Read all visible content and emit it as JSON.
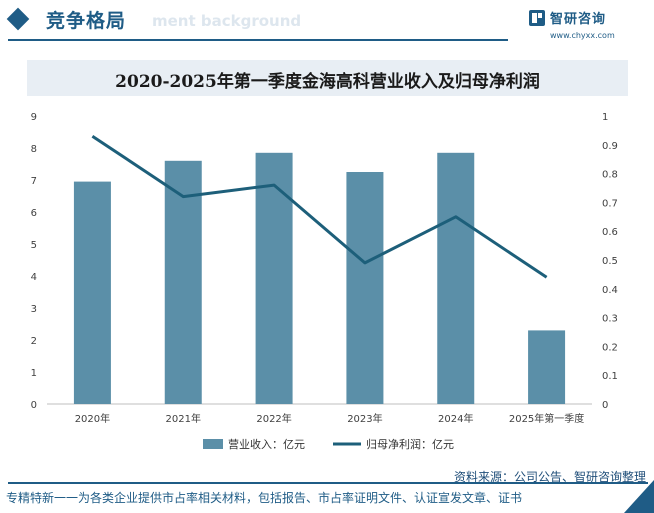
{
  "header": {
    "section_title": "竞争格局",
    "watermark_text": "ment background",
    "brand_name": "智研咨询",
    "brand_url": "www.chyxx.com"
  },
  "chart_data": {
    "type": "bar",
    "title": "2020-2025年第一季度金海高科营业收入及归母净利润",
    "categories": [
      "2020年",
      "2021年",
      "2022年",
      "2023年",
      "2024年",
      "2025年第一季度"
    ],
    "series": [
      {
        "name": "营业收入：亿元",
        "type": "bar",
        "axis": "left",
        "color": "#5b8fa8",
        "values": [
          6.95,
          7.6,
          7.85,
          7.25,
          7.85,
          2.3
        ]
      },
      {
        "name": "归母净利润：亿元",
        "type": "line",
        "axis": "right",
        "color": "#1d5f7a",
        "values": [
          0.93,
          0.72,
          0.76,
          0.49,
          0.65,
          0.44
        ]
      }
    ],
    "ylim_left": [
      0,
      9
    ],
    "ylim_right": [
      0,
      1
    ],
    "yticks_left": [
      "0",
      "1",
      "2",
      "3",
      "4",
      "5",
      "6",
      "7",
      "8",
      "9"
    ],
    "yticks_right": [
      "0",
      "0.1",
      "0.2",
      "0.3",
      "0.4",
      "0.5",
      "0.6",
      "0.7",
      "0.8",
      "0.9",
      "1"
    ],
    "grid": false,
    "legend_position": "bottom"
  },
  "footer": {
    "source": "资料来源：公司公告、智研咨询整理",
    "tagline": "专精特新一一为各类企业提供市占率相关材料，包括报告、市占率证明文件、认证宣发文章、证书"
  }
}
